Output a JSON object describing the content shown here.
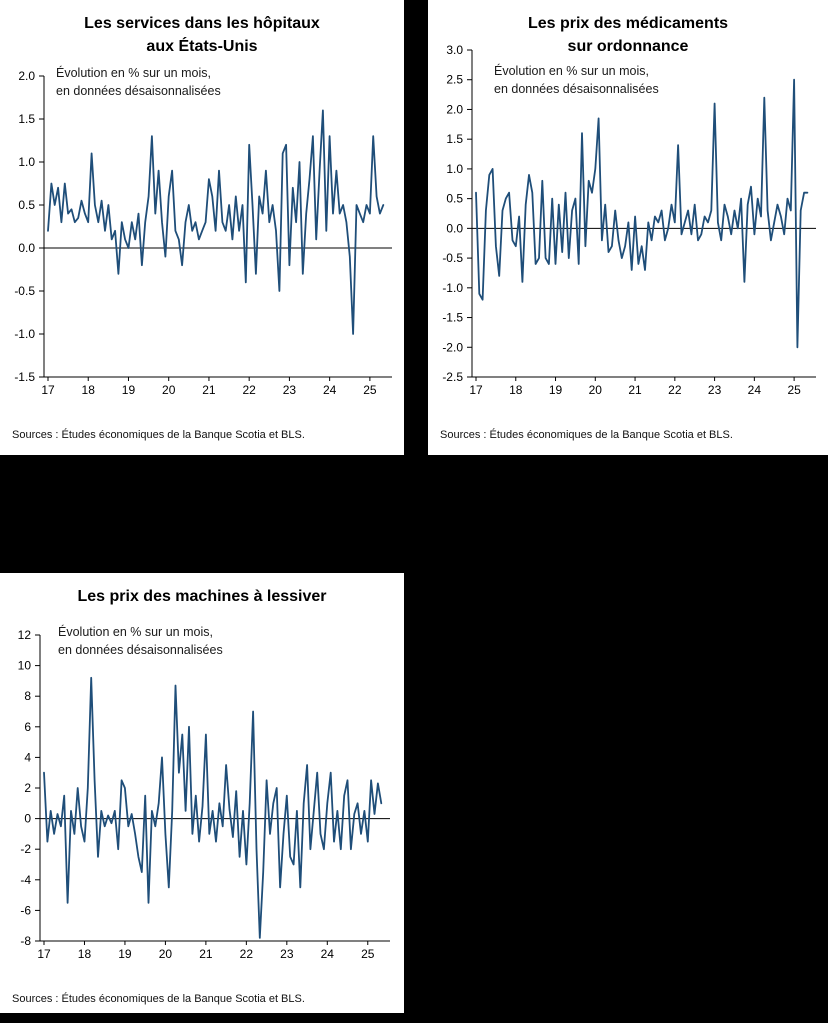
{
  "colors": {
    "line": "#1f4e79",
    "axis": "#000000",
    "panel_bg": "#ffffff",
    "page_bg": "#000000"
  },
  "chart_data": [
    {
      "type": "line",
      "title_lines": [
        "Les services dans les hôpitaux",
        "aux États-Unis"
      ],
      "annotation_lines": [
        "Évolution en % sur un mois,",
        "en données désaisonnalisées"
      ],
      "source": "Sources : Études économiques de la Banque Scotia et BLS.",
      "x_ticks": [
        "17",
        "18",
        "19",
        "20",
        "21",
        "22",
        "23",
        "24",
        "25"
      ],
      "x_range_years": [
        2017,
        2025.5
      ],
      "ylim": [
        -1.5,
        2.0
      ],
      "y_ticks": [
        2.0,
        1.5,
        1.0,
        0.5,
        0.0,
        -0.5,
        -1.0,
        -1.5
      ],
      "y_tick_labels": [
        "2.0",
        "1.5",
        "1.0",
        "0.5",
        "0.0",
        "-0.5",
        "-1.0",
        "-1.5"
      ],
      "grid": false,
      "legend": "none",
      "values": [
        0.2,
        0.75,
        0.5,
        0.7,
        0.3,
        0.75,
        0.4,
        0.45,
        0.3,
        0.35,
        0.55,
        0.4,
        0.3,
        1.1,
        0.5,
        0.3,
        0.55,
        0.2,
        0.5,
        0.1,
        0.2,
        -0.3,
        0.3,
        0.1,
        0.0,
        0.3,
        0.1,
        0.4,
        -0.2,
        0.3,
        0.6,
        1.3,
        0.4,
        0.9,
        0.3,
        -0.1,
        0.6,
        0.9,
        0.2,
        0.1,
        -0.2,
        0.3,
        0.5,
        0.2,
        0.3,
        0.1,
        0.2,
        0.3,
        0.8,
        0.6,
        0.2,
        0.9,
        0.3,
        0.2,
        0.5,
        0.1,
        0.6,
        0.2,
        0.5,
        -0.4,
        1.2,
        0.5,
        -0.3,
        0.6,
        0.4,
        0.9,
        0.3,
        0.5,
        0.2,
        -0.5,
        1.1,
        1.2,
        -0.2,
        0.7,
        0.3,
        1.0,
        -0.3,
        0.4,
        0.8,
        1.3,
        0.1,
        0.9,
        1.6,
        0.2,
        1.3,
        0.4,
        0.9,
        0.4,
        0.5,
        0.3,
        -0.1,
        -1.0,
        0.5,
        0.4,
        0.3,
        0.5,
        0.4,
        1.3,
        0.6,
        0.4,
        0.5
      ]
    },
    {
      "type": "line",
      "title_lines": [
        "Les prix des médicaments",
        "sur ordonnance"
      ],
      "annotation_lines": [
        "Évolution en % sur un mois,",
        "en données désaisonnalisées"
      ],
      "source": "Sources : Études économiques de la Banque Scotia et BLS.",
      "x_ticks": [
        "17",
        "18",
        "19",
        "20",
        "21",
        "22",
        "23",
        "24",
        "25"
      ],
      "x_range_years": [
        2017,
        2025.5
      ],
      "ylim": [
        -2.5,
        3.0
      ],
      "y_ticks": [
        3.0,
        2.5,
        2.0,
        1.5,
        1.0,
        0.5,
        0.0,
        -0.5,
        -1.0,
        -1.5,
        -2.0,
        -2.5
      ],
      "y_tick_labels": [
        "3.0",
        "2.5",
        "2.0",
        "1.5",
        "1.0",
        "0.5",
        "0.0",
        "-0.5",
        "-1.0",
        "-1.5",
        "-2.0",
        "-2.5"
      ],
      "grid": false,
      "legend": "none",
      "values": [
        0.6,
        -1.1,
        -1.2,
        0.3,
        0.9,
        1.0,
        -0.3,
        -0.8,
        0.3,
        0.5,
        0.6,
        -0.2,
        -0.3,
        0.2,
        -0.9,
        0.4,
        0.9,
        0.6,
        -0.6,
        -0.5,
        0.8,
        -0.5,
        -0.6,
        0.5,
        -0.6,
        0.4,
        -0.4,
        0.6,
        -0.5,
        0.3,
        0.5,
        -0.6,
        1.6,
        -0.3,
        0.8,
        0.6,
        1.0,
        1.85,
        -0.2,
        0.4,
        -0.4,
        -0.3,
        0.3,
        -0.2,
        -0.5,
        -0.3,
        0.1,
        -0.7,
        0.2,
        -0.6,
        -0.3,
        -0.7,
        0.1,
        -0.2,
        0.2,
        0.1,
        0.3,
        -0.2,
        0.0,
        0.4,
        0.1,
        1.4,
        -0.1,
        0.1,
        0.3,
        -0.1,
        0.4,
        -0.2,
        -0.1,
        0.2,
        0.1,
        0.3,
        2.1,
        0.1,
        -0.2,
        0.4,
        0.2,
        -0.1,
        0.3,
        0.0,
        0.5,
        -0.9,
        0.4,
        0.7,
        -0.1,
        0.5,
        0.2,
        2.2,
        0.3,
        -0.2,
        0.1,
        0.4,
        0.2,
        -0.1,
        0.5,
        0.3,
        2.5,
        -2.0,
        0.3,
        0.6,
        0.6
      ]
    },
    {
      "type": "line",
      "title_lines": [
        "Les prix des machines à lessiver"
      ],
      "annotation_lines": [
        "Évolution en % sur un mois,",
        "en données désaisonnalisées"
      ],
      "source": "Sources : Études économiques de la Banque Scotia et BLS.",
      "x_ticks": [
        "17",
        "18",
        "19",
        "20",
        "21",
        "22",
        "23",
        "24",
        "25"
      ],
      "x_range_years": [
        2017,
        2025.5
      ],
      "ylim": [
        -8,
        12
      ],
      "y_ticks": [
        12,
        10,
        8,
        6,
        4,
        2,
        0,
        -2,
        -4,
        -6,
        -8
      ],
      "y_tick_labels": [
        "12",
        "10",
        "8",
        "6",
        "4",
        "2",
        "0",
        "-2",
        "-4",
        "-6",
        "-8"
      ],
      "grid": false,
      "legend": "none",
      "values": [
        3.0,
        -1.5,
        0.5,
        -1.0,
        0.3,
        -0.5,
        1.5,
        -5.5,
        0.5,
        -1.0,
        2.0,
        -0.5,
        -1.5,
        2.0,
        9.2,
        2.5,
        -2.5,
        0.5,
        -0.5,
        0.2,
        -0.3,
        0.5,
        -2.0,
        2.5,
        2.0,
        -0.5,
        0.3,
        -1.0,
        -2.5,
        -3.5,
        1.5,
        -5.5,
        0.5,
        -0.5,
        1.0,
        4.0,
        -1.0,
        -4.5,
        0.5,
        8.7,
        3.0,
        5.5,
        0.5,
        6.0,
        -1.0,
        1.5,
        -1.5,
        0.8,
        5.5,
        -1.0,
        0.5,
        -1.5,
        1.0,
        -0.5,
        3.5,
        0.6,
        -1.2,
        1.8,
        -2.5,
        0.5,
        -3.0,
        1.0,
        7.0,
        -2.0,
        -7.8,
        -3.5,
        2.5,
        -1.0,
        1.0,
        2.0,
        -4.5,
        -1.0,
        1.5,
        -2.5,
        -3.0,
        0.5,
        -4.5,
        1.0,
        3.5,
        -2.0,
        0.5,
        3.0,
        -1.0,
        -2.0,
        1.0,
        3.0,
        -1.5,
        0.5,
        -2.0,
        1.5,
        2.5,
        -2.0,
        0.3,
        1.0,
        -1.0,
        0.5,
        -1.5,
        2.5,
        0.3,
        2.3,
        1.0
      ]
    }
  ]
}
